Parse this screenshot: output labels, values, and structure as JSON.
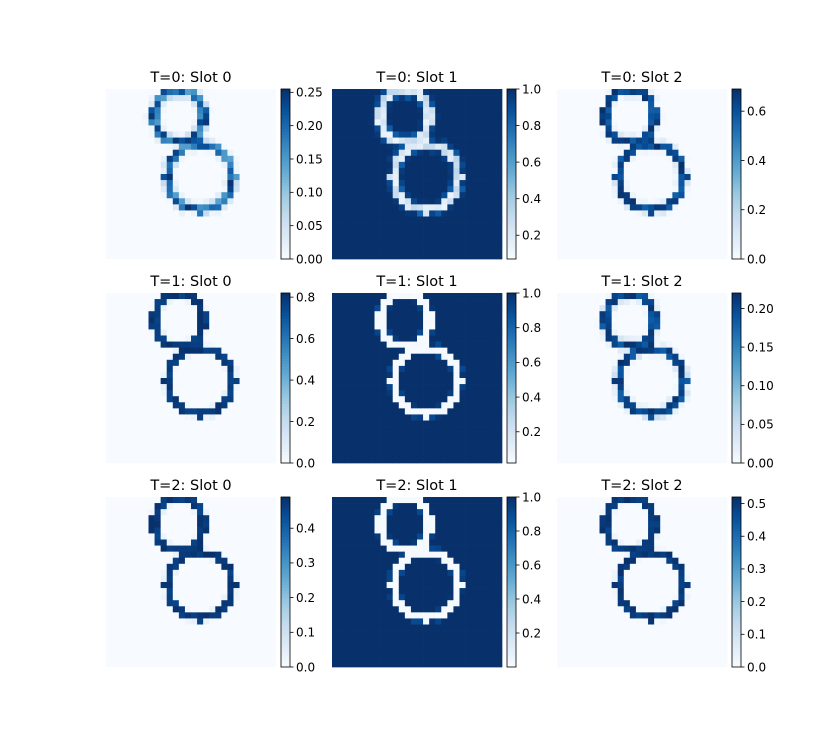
{
  "chart_data": {
    "type": "heatmap",
    "colormap": "Blues",
    "colors": {
      "low": "#f7fbff",
      "mid": "#6baed6",
      "high": "#08306b"
    },
    "grid": false,
    "axes_visible": false,
    "image_size": [
      28,
      28
    ],
    "layout": {
      "rows": 3,
      "cols": 3
    },
    "panels": [
      {
        "title": "T=0: Slot 0",
        "colorbar": {
          "range": [
            0.0,
            0.255
          ],
          "ticks": [
            "0.00",
            "0.05",
            "0.10",
            "0.15",
            "0.20",
            "0.25"
          ],
          "tick_values": [
            0.0,
            0.05,
            0.1,
            0.15,
            0.2,
            0.25
          ]
        },
        "mode": "stroke_soft"
      },
      {
        "title": "T=0: Slot 1",
        "colorbar": {
          "range": [
            0.07,
            1.0
          ],
          "ticks": [
            "0.2",
            "0.4",
            "0.6",
            "0.8",
            "1.0"
          ],
          "tick_values": [
            0.2,
            0.4,
            0.6,
            0.8,
            1.0
          ]
        },
        "mode": "background_soft"
      },
      {
        "title": "T=0: Slot 2",
        "colorbar": {
          "range": [
            0.0,
            0.69
          ],
          "ticks": [
            "0.0",
            "0.2",
            "0.4",
            "0.6"
          ],
          "tick_values": [
            0.0,
            0.2,
            0.4,
            0.6
          ]
        },
        "mode": "stroke_medium"
      },
      {
        "title": "T=1: Slot 0",
        "colorbar": {
          "range": [
            0.0,
            0.82
          ],
          "ticks": [
            "0.0",
            "0.2",
            "0.4",
            "0.6",
            "0.8"
          ],
          "tick_values": [
            0.0,
            0.2,
            0.4,
            0.6,
            0.8
          ]
        },
        "mode": "stroke_sharp"
      },
      {
        "title": "T=1: Slot 1",
        "colorbar": {
          "range": [
            0.02,
            1.0
          ],
          "ticks": [
            "0.2",
            "0.4",
            "0.6",
            "0.8",
            "1.0"
          ],
          "tick_values": [
            0.2,
            0.4,
            0.6,
            0.8,
            1.0
          ]
        },
        "mode": "background_sharp"
      },
      {
        "title": "T=1: Slot 2",
        "colorbar": {
          "range": [
            0.0,
            0.22
          ],
          "ticks": [
            "0.00",
            "0.05",
            "0.10",
            "0.15",
            "0.20"
          ],
          "tick_values": [
            0.0,
            0.05,
            0.1,
            0.15,
            0.2
          ]
        },
        "mode": "stroke_medium"
      },
      {
        "title": "T=2: Slot 0",
        "colorbar": {
          "range": [
            0.0,
            0.49
          ],
          "ticks": [
            "0.0",
            "0.1",
            "0.2",
            "0.3",
            "0.4"
          ],
          "tick_values": [
            0.0,
            0.1,
            0.2,
            0.3,
            0.4
          ]
        },
        "mode": "stroke_sharp"
      },
      {
        "title": "T=2: Slot 1",
        "colorbar": {
          "range": [
            0.0,
            1.0
          ],
          "ticks": [
            "0.2",
            "0.4",
            "0.6",
            "0.8",
            "1.0"
          ],
          "tick_values": [
            0.2,
            0.4,
            0.6,
            0.8,
            1.0
          ]
        },
        "mode": "background_sharp"
      },
      {
        "title": "T=2: Slot 2",
        "colorbar": {
          "range": [
            0.0,
            0.52
          ],
          "ticks": [
            "0.0",
            "0.1",
            "0.2",
            "0.3",
            "0.4",
            "0.5"
          ],
          "tick_values": [
            0.0,
            0.1,
            0.2,
            0.3,
            0.4,
            0.5
          ]
        },
        "mode": "stroke_sharp"
      }
    ]
  }
}
